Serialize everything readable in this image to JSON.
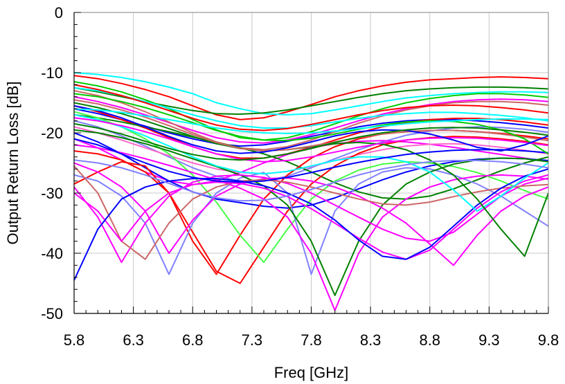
{
  "chart_data": {
    "type": "line",
    "xlabel": "Freq [GHz]",
    "ylabel": "Output Return Loss [dB]",
    "xlim": [
      5.8,
      9.8
    ],
    "ylim": [
      -50,
      0
    ],
    "grid": true,
    "x_ticks": [
      "5.8",
      "6.3",
      "6.8",
      "7.3",
      "7.8",
      "8.3",
      "8.8",
      "9.3",
      "9.8"
    ],
    "y_ticks": [
      "0",
      "-10",
      "-20",
      "-30",
      "-40",
      "-50"
    ],
    "x": [
      5.8,
      6.0,
      6.2,
      6.4,
      6.6,
      6.8,
      7.0,
      7.2,
      7.4,
      7.6,
      7.8,
      8.0,
      8.2,
      8.4,
      8.6,
      8.8,
      9.0,
      9.2,
      9.4,
      9.6,
      9.8
    ],
    "series": [
      {
        "color": "#ff0000",
        "values": [
          -10.5,
          -11.0,
          -11.8,
          -12.8,
          -14.0,
          -15.5,
          -17.0,
          -17.8,
          -17.5,
          -16.5,
          -15.3,
          -14.0,
          -13.0,
          -12.2,
          -11.6,
          -11.2,
          -11.0,
          -10.8,
          -10.7,
          -10.8,
          -11.0
        ]
      },
      {
        "color": "#00ffff",
        "values": [
          -10.0,
          -10.3,
          -10.8,
          -11.5,
          -12.4,
          -13.5,
          -15.0,
          -16.0,
          -16.8,
          -17.0,
          -16.8,
          -16.2,
          -15.5,
          -14.8,
          -14.2,
          -13.8,
          -13.5,
          -13.3,
          -13.2,
          -13.2,
          -13.3
        ]
      },
      {
        "color": "#008000",
        "values": [
          -12.5,
          -13.2,
          -14.0,
          -14.8,
          -15.6,
          -16.3,
          -16.8,
          -16.9,
          -16.7,
          -16.2,
          -15.5,
          -14.8,
          -14.1,
          -13.5,
          -13.0,
          -12.7,
          -12.5,
          -12.4,
          -12.4,
          -12.5,
          -12.7
        ]
      },
      {
        "color": "#ff00ff",
        "values": [
          -14.0,
          -14.8,
          -15.8,
          -17.0,
          -18.3,
          -19.6,
          -20.8,
          -21.5,
          -21.7,
          -21.2,
          -20.3,
          -19.2,
          -18.0,
          -16.9,
          -16.0,
          -15.3,
          -14.8,
          -14.5,
          -14.4,
          -14.5,
          -14.8
        ]
      },
      {
        "color": "#0000ff",
        "values": [
          -16.0,
          -16.8,
          -17.8,
          -18.9,
          -20.0,
          -21.0,
          -21.8,
          -22.2,
          -22.0,
          -21.4,
          -20.6,
          -19.8,
          -19.0,
          -18.4,
          -18.0,
          -17.8,
          -17.8,
          -18.0,
          -18.3,
          -18.7,
          -19.2
        ]
      },
      {
        "color": "#cc6666",
        "values": [
          -13.0,
          -13.8,
          -15.0,
          -16.5,
          -18.2,
          -20.0,
          -21.5,
          -22.5,
          -22.8,
          -22.3,
          -21.2,
          -19.8,
          -18.4,
          -17.2,
          -16.2,
          -15.5,
          -15.0,
          -14.8,
          -14.8,
          -15.0,
          -15.4
        ]
      },
      {
        "color": "#00cc00",
        "values": [
          -11.5,
          -12.2,
          -13.2,
          -14.5,
          -16.0,
          -17.8,
          -19.5,
          -20.8,
          -21.2,
          -20.8,
          -19.8,
          -18.5,
          -17.2,
          -16.0,
          -15.0,
          -14.3,
          -13.8,
          -13.5,
          -13.5,
          -13.7,
          -14.1
        ]
      },
      {
        "color": "#ff0000",
        "values": [
          -15.5,
          -16.5,
          -17.8,
          -19.2,
          -20.8,
          -22.3,
          -23.5,
          -24.2,
          -24.2,
          -23.5,
          -22.4,
          -21.2,
          -20.0,
          -19.0,
          -18.3,
          -17.8,
          -17.6,
          -17.6,
          -17.8,
          -18.2,
          -18.7
        ]
      },
      {
        "color": "#8080ff",
        "values": [
          -18.0,
          -19.0,
          -20.5,
          -22.2,
          -24.0,
          -25.8,
          -27.2,
          -28.0,
          -28.0,
          -27.2,
          -25.8,
          -24.3,
          -22.8,
          -21.5,
          -20.4,
          -19.7,
          -19.2,
          -19.0,
          -19.1,
          -19.4,
          -19.9
        ]
      },
      {
        "color": "#ff00ff",
        "values": [
          -21.0,
          -22.5,
          -24.5,
          -26.5,
          -28.0,
          -28.6,
          -28.0,
          -26.6,
          -25.0,
          -23.6,
          -22.5,
          -21.8,
          -21.4,
          -21.3,
          -21.5,
          -21.9,
          -22.4,
          -23.0,
          -23.6,
          -24.2,
          -24.8
        ]
      },
      {
        "color": "#0000ff",
        "values": [
          -20.0,
          -21.5,
          -23.5,
          -25.8,
          -28.0,
          -29.8,
          -31.0,
          -31.6,
          -32.2,
          -32.5,
          -32.0,
          -30.8,
          -29.3,
          -27.8,
          -26.5,
          -25.5,
          -24.8,
          -24.4,
          -24.2,
          -24.3,
          -24.6
        ]
      },
      {
        "color": "#008000",
        "values": [
          -17.0,
          -17.5,
          -18.2,
          -19.0,
          -19.8,
          -20.7,
          -21.6,
          -22.5,
          -23.5,
          -24.8,
          -26.5,
          -28.3,
          -29.8,
          -30.8,
          -31.0,
          -30.5,
          -29.3,
          -27.8,
          -26.3,
          -25.0,
          -24.0
        ]
      },
      {
        "color": "#ff66cc",
        "values": [
          -19.0,
          -20.0,
          -21.2,
          -22.5,
          -23.8,
          -25.0,
          -26.0,
          -26.6,
          -26.8,
          -26.4,
          -25.6,
          -24.6,
          -23.6,
          -22.8,
          -22.2,
          -21.9,
          -21.8,
          -22.0,
          -22.4,
          -22.9,
          -23.5
        ]
      },
      {
        "color": "#00ffff",
        "values": [
          -12.5,
          -13.0,
          -13.8,
          -14.8,
          -15.9,
          -17.0,
          -18.0,
          -18.8,
          -19.2,
          -19.2,
          -18.8,
          -18.2,
          -17.6,
          -17.1,
          -16.8,
          -16.6,
          -16.6,
          -16.8,
          -17.1,
          -17.5,
          -18.0
        ]
      },
      {
        "color": "#ff0000",
        "values": [
          -28.5,
          -26.5,
          -24.8,
          -25.5,
          -30.0,
          -38.0,
          -43.5,
          -37.0,
          -31.0,
          -27.0,
          -24.2,
          -22.3,
          -21.0,
          -20.2,
          -19.8,
          -19.6,
          -19.6,
          -19.8,
          -20.1,
          -20.5,
          -21.0
        ]
      },
      {
        "color": "#ff0000",
        "values": [
          -23.0,
          -23.5,
          -24.5,
          -26.5,
          -30.0,
          -36.5,
          -43.0,
          -45.0,
          -39.0,
          -33.0,
          -28.5,
          -25.5,
          -23.4,
          -22.0,
          -21.2,
          -20.8,
          -20.6,
          -20.7,
          -21.0,
          -21.4,
          -22.0
        ]
      },
      {
        "color": "#44ff44",
        "values": [
          -16.5,
          -17.5,
          -19.0,
          -21.0,
          -23.5,
          -27.0,
          -31.5,
          -37.0,
          -41.5,
          -36.0,
          -31.0,
          -28.0,
          -26.2,
          -25.2,
          -24.8,
          -25.0,
          -25.6,
          -26.6,
          -28.0,
          -29.6,
          -31.0
        ]
      },
      {
        "color": "#8080ff",
        "values": [
          -27.0,
          -28.0,
          -30.5,
          -35.0,
          -43.5,
          -35.0,
          -30.0,
          -27.5,
          -26.6,
          -30.0,
          -43.5,
          -33.0,
          -28.5,
          -26.5,
          -25.8,
          -26.0,
          -27.0,
          -28.5,
          -30.5,
          -33.0,
          -35.5
        ]
      },
      {
        "color": "#008000",
        "values": [
          -19.5,
          -20.0,
          -20.8,
          -21.8,
          -23.0,
          -24.3,
          -25.6,
          -27.0,
          -28.8,
          -32.0,
          -38.0,
          -47.0,
          -38.0,
          -32.0,
          -28.5,
          -26.5,
          -25.2,
          -24.5,
          -24.2,
          -24.3,
          -24.8
        ]
      },
      {
        "color": "#ff00ff",
        "values": [
          -22.0,
          -22.5,
          -23.3,
          -24.3,
          -25.4,
          -26.6,
          -27.8,
          -29.2,
          -31.0,
          -34.0,
          -40.0,
          -49.5,
          -40.0,
          -34.0,
          -31.0,
          -29.0,
          -27.8,
          -27.2,
          -27.0,
          -27.2,
          -27.7
        ]
      },
      {
        "color": "#ff00ff",
        "values": [
          -29.0,
          -34.0,
          -41.5,
          -35.0,
          -30.5,
          -28.2,
          -27.2,
          -27.0,
          -27.4,
          -28.4,
          -30.0,
          -32.0,
          -34.0,
          -36.0,
          -37.5,
          -38.0,
          -36.5,
          -33.5,
          -30.5,
          -28.5,
          -27.5
        ]
      },
      {
        "color": "#ff00ff",
        "values": [
          -25.0,
          -26.5,
          -29.0,
          -33.0,
          -40.0,
          -34.5,
          -30.5,
          -28.5,
          -27.6,
          -27.5,
          -28.0,
          -29.0,
          -30.5,
          -32.5,
          -35.0,
          -38.5,
          -42.0,
          -37.0,
          -33.0,
          -30.5,
          -29.0
        ]
      },
      {
        "color": "#cc6666",
        "values": [
          -25.5,
          -30.0,
          -38.0,
          -41.0,
          -35.0,
          -31.0,
          -29.0,
          -28.0,
          -27.8,
          -28.2,
          -29.0,
          -30.0,
          -31.0,
          -31.8,
          -32.0,
          -31.5,
          -30.6,
          -29.8,
          -29.2,
          -28.8,
          -28.6
        ]
      },
      {
        "color": "#ff00ff",
        "values": [
          -30.0,
          -33.0,
          -38.0,
          -33.0,
          -30.0,
          -28.6,
          -28.2,
          -28.4,
          -29.2,
          -30.6,
          -32.6,
          -35.0,
          -37.5,
          -39.8,
          -41.0,
          -39.5,
          -36.0,
          -32.5,
          -29.8,
          -28.0,
          -27.0
        ]
      },
      {
        "color": "#0000ff",
        "values": [
          -44.5,
          -36.0,
          -31.0,
          -29.0,
          -28.0,
          -27.6,
          -27.6,
          -28.0,
          -28.8,
          -30.0,
          -31.8,
          -34.5,
          -37.8,
          -40.5,
          -41.0,
          -39.0,
          -35.5,
          -32.0,
          -29.2,
          -27.2,
          -26.0
        ]
      },
      {
        "color": "#00ffff",
        "values": [
          -17.0,
          -17.8,
          -19.0,
          -20.5,
          -22.2,
          -24.0,
          -25.5,
          -26.5,
          -26.8,
          -26.4,
          -25.5,
          -24.6,
          -24.0,
          -24.0,
          -24.8,
          -26.5,
          -29.5,
          -33.0,
          -30.5,
          -27.5,
          -25.0
        ]
      },
      {
        "color": "#008000",
        "values": [
          -15.0,
          -15.8,
          -16.8,
          -18.0,
          -19.3,
          -20.6,
          -21.8,
          -22.6,
          -23.0,
          -22.8,
          -22.3,
          -21.8,
          -21.6,
          -21.9,
          -22.8,
          -24.5,
          -27.0,
          -31.0,
          -36.0,
          -40.5,
          -30.0
        ]
      },
      {
        "color": "#0000ff",
        "values": [
          -21.0,
          -22.0,
          -23.5,
          -25.0,
          -26.4,
          -27.4,
          -28.0,
          -28.2,
          -28.0,
          -27.4,
          -26.6,
          -25.7,
          -24.9,
          -24.2,
          -23.6,
          -23.2,
          -22.9,
          -22.8,
          -22.8,
          -23.0,
          -23.3
        ]
      },
      {
        "color": "#cc6666",
        "values": [
          -14.5,
          -15.2,
          -16.2,
          -17.4,
          -18.8,
          -20.3,
          -21.6,
          -22.6,
          -23.0,
          -22.8,
          -22.2,
          -21.5,
          -20.8,
          -20.2,
          -19.8,
          -19.6,
          -19.6,
          -19.8,
          -20.2,
          -20.7,
          -21.3
        ]
      },
      {
        "color": "#00cc00",
        "values": [
          -13.5,
          -14.0,
          -14.8,
          -15.8,
          -17.0,
          -18.3,
          -19.6,
          -20.6,
          -21.2,
          -21.3,
          -20.9,
          -20.2,
          -19.4,
          -18.7,
          -18.2,
          -18.0,
          -18.1,
          -18.6,
          -19.5,
          -21.0,
          -23.5
        ]
      },
      {
        "color": "#ff0000",
        "values": [
          -12.0,
          -12.8,
          -13.8,
          -15.0,
          -16.3,
          -17.6,
          -18.7,
          -19.4,
          -19.6,
          -19.3,
          -18.6,
          -17.8,
          -17.0,
          -16.3,
          -15.8,
          -15.5,
          -15.4,
          -15.5,
          -15.8,
          -16.2,
          -16.7
        ]
      },
      {
        "color": "#8080ff",
        "values": [
          -24.5,
          -25.0,
          -25.8,
          -27.0,
          -28.4,
          -29.8,
          -30.8,
          -31.3,
          -31.2,
          -30.5,
          -29.4,
          -28.2,
          -27.0,
          -26.0,
          -25.3,
          -24.8,
          -24.6,
          -24.6,
          -24.8,
          -25.2,
          -25.8
        ]
      },
      {
        "color": "#ff00ff",
        "values": [
          -17.5,
          -18.0,
          -18.8,
          -19.8,
          -21.0,
          -22.3,
          -23.5,
          -24.4,
          -24.8,
          -24.6,
          -24.0,
          -23.2,
          -22.4,
          -21.7,
          -21.2,
          -20.9,
          -20.8,
          -20.9,
          -21.2,
          -21.6,
          -22.1
        ]
      },
      {
        "color": "#0000ff",
        "values": [
          -15.5,
          -16.3,
          -17.5,
          -19.0,
          -20.6,
          -22.0,
          -23.0,
          -23.4,
          -23.2,
          -22.5,
          -21.5,
          -20.5,
          -19.8,
          -19.5,
          -19.6,
          -20.2,
          -21.2,
          -22.4,
          -23.0,
          -22.0,
          -20.5
        ]
      },
      {
        "color": "#00ffff",
        "values": [
          -16.0,
          -16.2,
          -16.6,
          -17.2,
          -17.8,
          -18.5,
          -19.2,
          -19.7,
          -20.0,
          -20.1,
          -20.0,
          -19.7,
          -19.3,
          -18.9,
          -18.5,
          -18.2,
          -18.0,
          -17.8,
          -17.7,
          -17.7,
          -17.8
        ]
      },
      {
        "color": "#008000",
        "values": [
          -18.5,
          -19.2,
          -20.2,
          -21.4,
          -22.6,
          -23.6,
          -24.3,
          -24.5,
          -24.2,
          -23.5,
          -22.6,
          -21.6,
          -20.7,
          -20.0,
          -19.5,
          -19.2,
          -19.1,
          -19.2,
          -19.5,
          -19.9,
          -20.4
        ]
      }
    ]
  }
}
